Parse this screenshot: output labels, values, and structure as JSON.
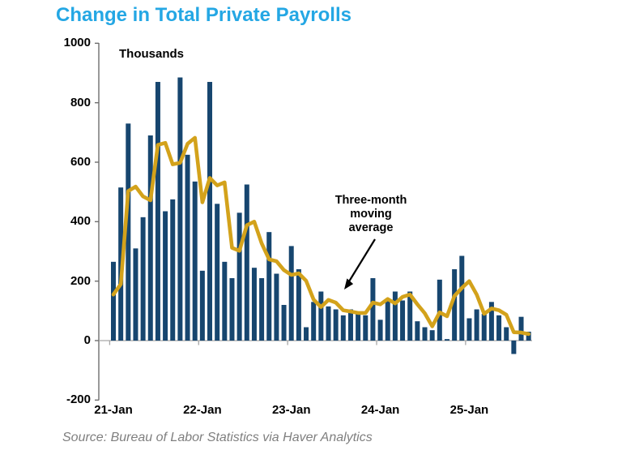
{
  "title": "Change in Total Private Payrolls",
  "unit_label": "Thousands",
  "annotation": "Three-month moving average",
  "source": "Source: Bureau of Labor Statistics via Haver Analytics",
  "colors": {
    "title": "#24A7E4",
    "bar": "#17466F",
    "line": "#D3A21B",
    "y_axis": "#6E6E6E",
    "zero_axis": "#A6A6A6",
    "text": "#000000",
    "source_text": "#7F7F7F",
    "arrow": "#000000"
  },
  "y_axis": {
    "min": -200,
    "max": 1000,
    "step": 200,
    "tick_labels": [
      "1000",
      "800",
      "600",
      "400",
      "200",
      "0",
      "-200"
    ],
    "tick_values": [
      1000,
      800,
      600,
      400,
      200,
      0,
      -200
    ]
  },
  "x_axis": {
    "tick_labels": [
      "21-Jan",
      "22-Jan",
      "23-Jan",
      "24-Jan",
      "25-Jan"
    ],
    "tick_month_index": [
      0,
      12,
      24,
      36,
      48
    ]
  },
  "chart_data": {
    "type": "bar",
    "title": "Change in Total Private Payrolls",
    "ylabel": "Thousands",
    "ylim": [
      -200,
      1000
    ],
    "grid": false,
    "legend_position": "none",
    "x": [
      "Jan-21",
      "Feb-21",
      "Mar-21",
      "Apr-21",
      "May-21",
      "Jun-21",
      "Jul-21",
      "Aug-21",
      "Sep-21",
      "Oct-21",
      "Nov-21",
      "Dec-21",
      "Jan-22",
      "Feb-22",
      "Mar-22",
      "Apr-22",
      "May-22",
      "Jun-22",
      "Jul-22",
      "Aug-22",
      "Sep-22",
      "Oct-22",
      "Nov-22",
      "Dec-22",
      "Jan-23",
      "Feb-23",
      "Mar-23",
      "Apr-23",
      "May-23",
      "Jun-23",
      "Jul-23",
      "Aug-23",
      "Sep-23",
      "Oct-23",
      "Nov-23",
      "Dec-23",
      "Jan-24",
      "Feb-24",
      "Mar-24",
      "Apr-24",
      "May-24",
      "Jun-24",
      "Jul-24",
      "Aug-24",
      "Sep-24",
      "Oct-24",
      "Nov-24",
      "Dec-24",
      "Jan-25",
      "Feb-25",
      "Mar-25",
      "Apr-25",
      "May-25",
      "Jun-25",
      "Jul-25",
      "Aug-25",
      "Sep-25"
    ],
    "series": [
      {
        "name": "Monthly change in private payrolls (thousands)",
        "type": "bar",
        "values": [
          265,
          515,
          730,
          310,
          415,
          690,
          870,
          435,
          475,
          885,
          625,
          535,
          235,
          870,
          460,
          265,
          210,
          430,
          525,
          245,
          210,
          365,
          225,
          120,
          318,
          240,
          45,
          130,
          165,
          115,
          105,
          85,
          105,
          90,
          85,
          210,
          70,
          140,
          165,
          135,
          165,
          65,
          45,
          35,
          205,
          5,
          240,
          285,
          75,
          105,
          90,
          130,
          85,
          45,
          -45,
          80,
          30
        ]
      },
      {
        "name": "Three-month moving average",
        "type": "line",
        "values": [
          155,
          190,
          503,
          518,
          485,
          472,
          658,
          665,
          593,
          598,
          662,
          682,
          465,
          547,
          522,
          532,
          312,
          302,
          388,
          400,
          327,
          273,
          267,
          237,
          221,
          226,
          201,
          138,
          113,
          137,
          128,
          102,
          98,
          93,
          93,
          128,
          122,
          140,
          125,
          147,
          155,
          122,
          92,
          48,
          95,
          82,
          150,
          177,
          200,
          155,
          90,
          108,
          102,
          87,
          28,
          27,
          22
        ]
      }
    ]
  }
}
